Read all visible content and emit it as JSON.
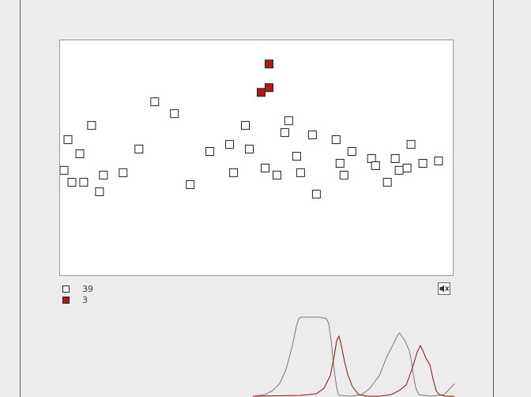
{
  "colors": {
    "background": "#ececec",
    "plot_background": "#ffffff",
    "normal_marker": "#ffffff",
    "highlight_marker": "#b21818",
    "wave_gray": "#7a7a7a",
    "wave_red": "#8a1212"
  },
  "legend": {
    "items": [
      {
        "count": "39",
        "kind": "normal"
      },
      {
        "count": "3",
        "kind": "highlighted"
      }
    ]
  },
  "icons": {
    "speaker": "speaker-mute-icon"
  },
  "chart_data": {
    "type": "scatter",
    "series": [
      {
        "kind": "normal",
        "points": [
          [
            1,
            45
          ],
          [
            2,
            58
          ],
          [
            3,
            40
          ],
          [
            5,
            52
          ],
          [
            6,
            40
          ],
          [
            8,
            64
          ],
          [
            10,
            36
          ],
          [
            11,
            43
          ],
          [
            16,
            44
          ],
          [
            20,
            54
          ],
          [
            24,
            74
          ],
          [
            29,
            69
          ],
          [
            33,
            39
          ],
          [
            38,
            53
          ],
          [
            43,
            56
          ],
          [
            44,
            44
          ],
          [
            47,
            64
          ],
          [
            48,
            54
          ],
          [
            52,
            46
          ],
          [
            55,
            43
          ],
          [
            57,
            61
          ],
          [
            58,
            66
          ],
          [
            60,
            51
          ],
          [
            61,
            44
          ],
          [
            64,
            60
          ],
          [
            65,
            35
          ],
          [
            70,
            58
          ],
          [
            71,
            48
          ],
          [
            72,
            43
          ],
          [
            74,
            53
          ],
          [
            79,
            50
          ],
          [
            80,
            47
          ],
          [
            83,
            40
          ],
          [
            85,
            50
          ],
          [
            86,
            45
          ],
          [
            88,
            46
          ],
          [
            89,
            56
          ],
          [
            92,
            48
          ],
          [
            96,
            49
          ]
        ]
      },
      {
        "kind": "highlighted",
        "points": [
          [
            51,
            78
          ],
          [
            53,
            80
          ],
          [
            53,
            90
          ]
        ]
      }
    ],
    "xlim": [
      0,
      100
    ],
    "ylim": [
      0,
      100
    ]
  }
}
